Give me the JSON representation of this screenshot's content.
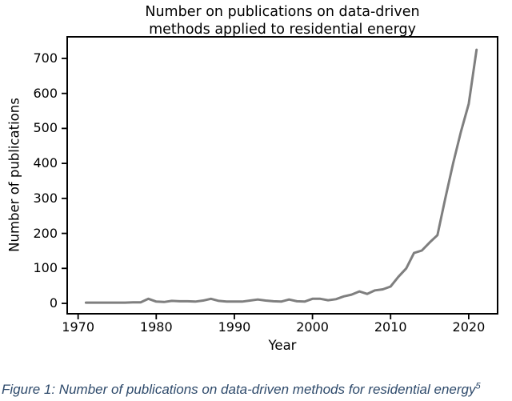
{
  "figure": {
    "title_line1": "Number on publications on data-driven",
    "title_line2": "methods applied to residential energy",
    "caption_text": "Figure 1: Number of publications on data-driven methods for residential energy",
    "caption_superscript": "5",
    "caption_color": "#2e4a6b"
  },
  "chart_data": {
    "type": "line",
    "title": "Number on publications on data-driven methods applied to residential energy",
    "xlabel": "Year",
    "ylabel": "Number of publications",
    "x": [
      1971,
      1972,
      1973,
      1974,
      1975,
      1976,
      1977,
      1978,
      1979,
      1980,
      1981,
      1982,
      1983,
      1984,
      1985,
      1986,
      1987,
      1988,
      1989,
      1990,
      1991,
      1992,
      1993,
      1994,
      1995,
      1996,
      1997,
      1998,
      1999,
      2000,
      2001,
      2002,
      2003,
      2004,
      2005,
      2006,
      2007,
      2008,
      2009,
      2010,
      2011,
      2012,
      2013,
      2014,
      2015,
      2016,
      2017,
      2018,
      2019,
      2020,
      2021
    ],
    "series": [
      {
        "name": "Number of publications",
        "values": [
          2,
          2,
          2,
          2,
          2,
          2,
          3,
          3,
          13,
          5,
          4,
          7,
          6,
          6,
          5,
          8,
          13,
          7,
          5,
          5,
          5,
          8,
          11,
          8,
          6,
          5,
          11,
          6,
          5,
          13,
          13,
          9,
          12,
          20,
          25,
          34,
          27,
          37,
          40,
          48,
          76,
          100,
          144,
          151,
          174,
          195,
          300,
          400,
          490,
          570,
          725
        ]
      }
    ],
    "x_ticks": [
      1970,
      1980,
      1990,
      2000,
      2010,
      2020
    ],
    "y_ticks": [
      0,
      100,
      200,
      300,
      400,
      500,
      600,
      700
    ],
    "xlim": [
      1968.5,
      2023.8
    ],
    "ylim": [
      -32,
      764
    ],
    "grid": false,
    "legend": "none",
    "line_color": "#7f7f7f",
    "line_width": 3,
    "axis_color": "#000000"
  }
}
